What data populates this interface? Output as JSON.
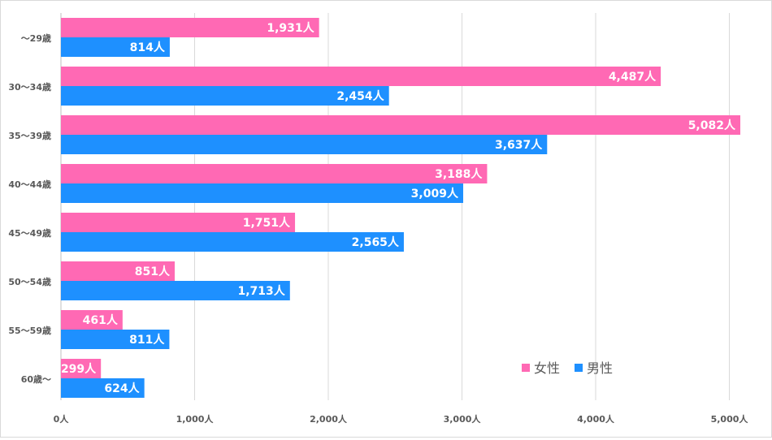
{
  "chart_data": {
    "type": "bar",
    "orientation": "horizontal",
    "categories": [
      "～29歳",
      "30～34歳",
      "35～39歳",
      "40～44歳",
      "45～49歳",
      "50～54歳",
      "55～59歳",
      "60歳～"
    ],
    "series": [
      {
        "name": "女性",
        "color": "#ff69b4",
        "values": [
          1931,
          4487,
          5082,
          3188,
          1751,
          851,
          461,
          299
        ],
        "labels": [
          "1,931人",
          "4,487人",
          "5,082人",
          "3,188人",
          "1,751人",
          "851人",
          "461人",
          "299人"
        ]
      },
      {
        "name": "男性",
        "color": "#1e90ff",
        "values": [
          814,
          2454,
          3637,
          3009,
          2565,
          1713,
          811,
          624
        ],
        "labels": [
          "814人",
          "2,454人",
          "3,637人",
          "3,009人",
          "2,565人",
          "1,713人",
          "811人",
          "624人"
        ]
      }
    ],
    "xlim": [
      0,
      5000
    ],
    "ticks": [
      0,
      1000,
      2000,
      3000,
      4000,
      5000
    ],
    "tick_labels": [
      "0人",
      "1,000人",
      "2,000人",
      "3,000人",
      "4,000人",
      "5,000人"
    ],
    "grid": true,
    "legend_position": "bottom-right"
  }
}
